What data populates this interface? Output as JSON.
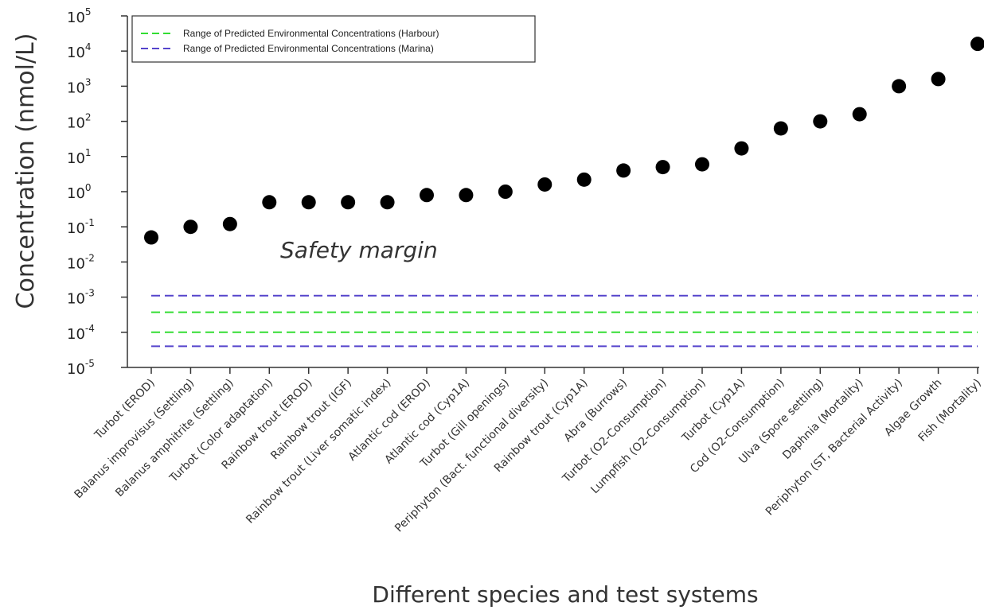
{
  "chart_data": {
    "type": "scatter",
    "title": "",
    "xlabel": "Different species and test systems",
    "ylabel": "Concentration (nmol/L)",
    "yscale": "log",
    "ylim": [
      1e-05,
      100000
    ],
    "y_ticks": [
      {
        "base": "10",
        "exp": "5",
        "value": 100000
      },
      {
        "base": "10",
        "exp": "4",
        "value": 10000
      },
      {
        "base": "10",
        "exp": "3",
        "value": 1000
      },
      {
        "base": "10",
        "exp": "2",
        "value": 100
      },
      {
        "base": "10",
        "exp": "1",
        "value": 10
      },
      {
        "base": "10",
        "exp": "0",
        "value": 1
      },
      {
        "base": "10",
        "exp": "-1",
        "value": 0.1
      },
      {
        "base": "10",
        "exp": "-2",
        "value": 0.01
      },
      {
        "base": "10",
        "exp": "-3",
        "value": 0.001
      },
      {
        "base": "10",
        "exp": "-4",
        "value": 0.0001
      },
      {
        "base": "10",
        "exp": "-5",
        "value": 1e-05
      }
    ],
    "categories": [
      "Turbot (EROD)",
      "Balanus improvisus (Settling)",
      "Balanus amphitrite (Settling)",
      "Turbot (Color adaptation)",
      "Rainbow trout (EROD)",
      "Rainbow trout (IGF)",
      "Rainbow trout (Liver somatic index)",
      "Atlantic cod (EROD)",
      "Atlantic cod  (Cyp1A)",
      "Turbot (Gill openings)",
      "Periphyton (Bact. functional diversity)",
      "Rainbow trout (Cyp1A)",
      "Abra (Burrows)",
      "Turbot (O2-Consumption)",
      "Lumpfish (O2-Consumption)",
      "Turbot (Cyp1A)",
      "Cod (O2-Consumption)",
      "Ulva (Spore settling)",
      "Daphnia (Mortality)",
      "Periphyton (ST, Bacterial Activity)",
      "Algae Growth",
      "Fish (Mortality)"
    ],
    "values": [
      0.05,
      0.1,
      0.12,
      0.5,
      0.5,
      0.5,
      0.5,
      0.8,
      0.8,
      1.0,
      1.6,
      2.2,
      4.0,
      5.0,
      6.0,
      17,
      63,
      100,
      160,
      1000,
      1600,
      16000
    ],
    "reference_lines": [
      {
        "name": "Range of Predicted Environmental Concentrations (Harbour)",
        "color": "#33dd33",
        "values": [
          0.0001,
          0.00037
        ]
      },
      {
        "name": "Range of Predicted Environmental Concentrations (Marina)",
        "color": "#5544cc",
        "values": [
          4e-05,
          0.0011
        ]
      }
    ],
    "annotation": "Safety margin",
    "legend_position": "top-left",
    "grid": false,
    "point_color": "#000000"
  }
}
